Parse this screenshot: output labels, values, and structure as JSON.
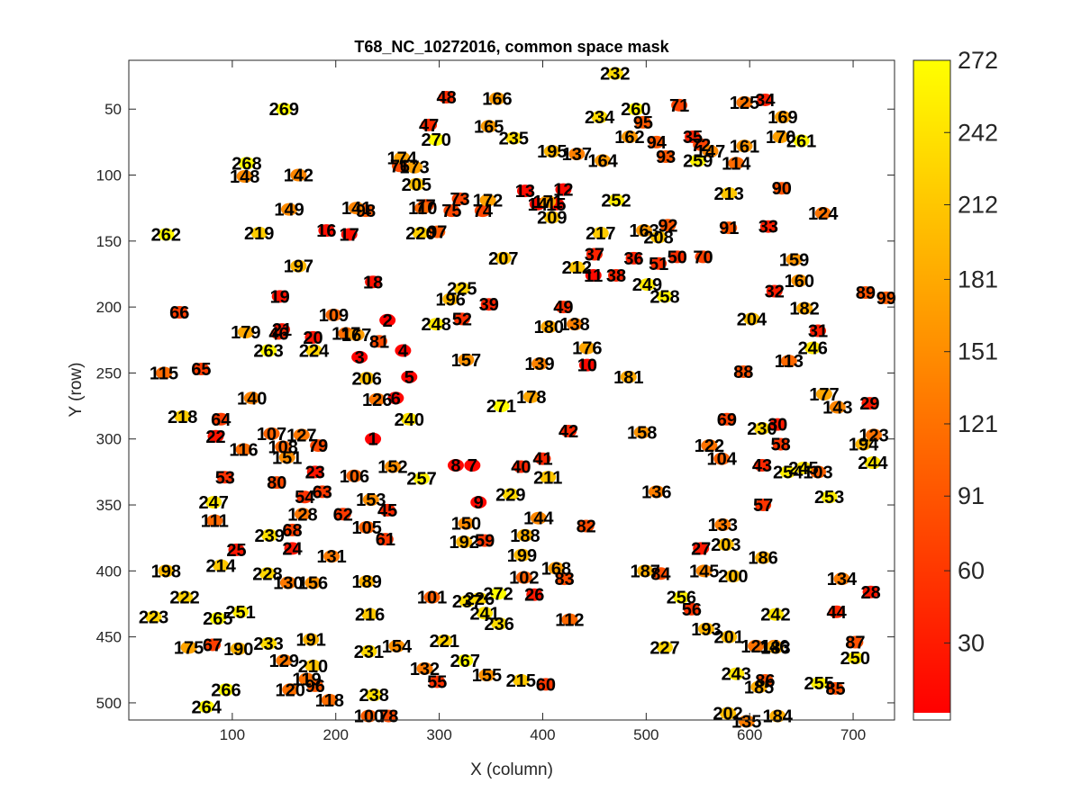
{
  "chart_data": {
    "type": "scatter",
    "title": "T68_NC_10272016, common space mask",
    "xlabel": "X (column)",
    "ylabel": "Y (row)",
    "xlim": [
      0,
      740
    ],
    "ylim": [
      13,
      513
    ],
    "y_reversed": true,
    "x_ticks": [
      100,
      200,
      300,
      400,
      500,
      600,
      700
    ],
    "y_ticks": [
      50,
      100,
      150,
      200,
      250,
      300,
      350,
      400,
      450,
      500
    ],
    "colorbar": {
      "colormap": "autumn",
      "range": [
        1,
        272
      ],
      "ticks": [
        30,
        60,
        91,
        121,
        151,
        181,
        212,
        242,
        272
      ]
    },
    "points": [
      {
        "id": 1,
        "x": 236,
        "y": 300
      },
      {
        "id": 2,
        "x": 250,
        "y": 210
      },
      {
        "id": 3,
        "x": 223,
        "y": 238
      },
      {
        "id": 4,
        "x": 265,
        "y": 233
      },
      {
        "id": 5,
        "x": 271,
        "y": 253
      },
      {
        "id": 6,
        "x": 258,
        "y": 269
      },
      {
        "id": 7,
        "x": 332,
        "y": 320
      },
      {
        "id": 8,
        "x": 316,
        "y": 320
      },
      {
        "id": 9,
        "x": 338,
        "y": 348
      },
      {
        "id": 10,
        "x": 443,
        "y": 244
      },
      {
        "id": 11,
        "x": 449,
        "y": 176
      },
      {
        "id": 12,
        "x": 420,
        "y": 111
      },
      {
        "id": 13,
        "x": 383,
        "y": 112
      },
      {
        "id": 14,
        "x": 395,
        "y": 122
      },
      {
        "id": 15,
        "x": 413,
        "y": 122
      },
      {
        "id": 16,
        "x": 191,
        "y": 142
      },
      {
        "id": 17,
        "x": 213,
        "y": 145
      },
      {
        "id": 18,
        "x": 236,
        "y": 181
      },
      {
        "id": 19,
        "x": 146,
        "y": 192
      },
      {
        "id": 20,
        "x": 178,
        "y": 223
      },
      {
        "id": 21,
        "x": 148,
        "y": 217
      },
      {
        "id": 22,
        "x": 84,
        "y": 298
      },
      {
        "id": 23,
        "x": 180,
        "y": 325
      },
      {
        "id": 24,
        "x": 158,
        "y": 383
      },
      {
        "id": 25,
        "x": 104,
        "y": 384
      },
      {
        "id": 26,
        "x": 392,
        "y": 418
      },
      {
        "id": 27,
        "x": 553,
        "y": 383
      },
      {
        "id": 28,
        "x": 717,
        "y": 416
      },
      {
        "id": 29,
        "x": 716,
        "y": 273
      },
      {
        "id": 30,
        "x": 627,
        "y": 289
      },
      {
        "id": 31,
        "x": 666,
        "y": 218
      },
      {
        "id": 32,
        "x": 624,
        "y": 188
      },
      {
        "id": 33,
        "x": 618,
        "y": 139
      },
      {
        "id": 34,
        "x": 615,
        "y": 43
      },
      {
        "id": 35,
        "x": 545,
        "y": 71
      },
      {
        "id": 36,
        "x": 488,
        "y": 163
      },
      {
        "id": 37,
        "x": 450,
        "y": 160
      },
      {
        "id": 38,
        "x": 471,
        "y": 176
      },
      {
        "id": 39,
        "x": 348,
        "y": 198
      },
      {
        "id": 40,
        "x": 379,
        "y": 321
      },
      {
        "id": 41,
        "x": 400,
        "y": 315
      },
      {
        "id": 42,
        "x": 425,
        "y": 294
      },
      {
        "id": 43,
        "x": 612,
        "y": 320
      },
      {
        "id": 44,
        "x": 684,
        "y": 431
      },
      {
        "id": 45,
        "x": 250,
        "y": 354
      },
      {
        "id": 46,
        "x": 145,
        "y": 220
      },
      {
        "id": 47,
        "x": 290,
        "y": 62
      },
      {
        "id": 48,
        "x": 307,
        "y": 41
      },
      {
        "id": 49,
        "x": 420,
        "y": 200
      },
      {
        "id": 50,
        "x": 530,
        "y": 162
      },
      {
        "id": 51,
        "x": 512,
        "y": 167
      },
      {
        "id": 52,
        "x": 322,
        "y": 209
      },
      {
        "id": 53,
        "x": 93,
        "y": 329
      },
      {
        "id": 54,
        "x": 170,
        "y": 344
      },
      {
        "id": 55,
        "x": 298,
        "y": 484
      },
      {
        "id": 56,
        "x": 544,
        "y": 429
      },
      {
        "id": 57,
        "x": 613,
        "y": 350
      },
      {
        "id": 58,
        "x": 630,
        "y": 304
      },
      {
        "id": 59,
        "x": 344,
        "y": 377
      },
      {
        "id": 60,
        "x": 403,
        "y": 486
      },
      {
        "id": 61,
        "x": 248,
        "y": 376
      },
      {
        "id": 62,
        "x": 207,
        "y": 357
      },
      {
        "id": 63,
        "x": 187,
        "y": 340
      },
      {
        "id": 64,
        "x": 89,
        "y": 285
      },
      {
        "id": 65,
        "x": 70,
        "y": 247
      },
      {
        "id": 66,
        "x": 49,
        "y": 204
      },
      {
        "id": 67,
        "x": 81,
        "y": 456
      },
      {
        "id": 68,
        "x": 158,
        "y": 369
      },
      {
        "id": 69,
        "x": 578,
        "y": 285
      },
      {
        "id": 70,
        "x": 555,
        "y": 162
      },
      {
        "id": 71,
        "x": 532,
        "y": 47
      },
      {
        "id": 72,
        "x": 553,
        "y": 77
      },
      {
        "id": 73,
        "x": 320,
        "y": 118
      },
      {
        "id": 74,
        "x": 342,
        "y": 127
      },
      {
        "id": 75,
        "x": 312,
        "y": 127
      },
      {
        "id": 76,
        "x": 262,
        "y": 93
      },
      {
        "id": 77,
        "x": 287,
        "y": 123
      },
      {
        "id": 78,
        "x": 251,
        "y": 510
      },
      {
        "id": 79,
        "x": 183,
        "y": 305
      },
      {
        "id": 80,
        "x": 143,
        "y": 333
      },
      {
        "id": 81,
        "x": 242,
        "y": 226
      },
      {
        "id": 82,
        "x": 442,
        "y": 366
      },
      {
        "id": 83,
        "x": 421,
        "y": 406
      },
      {
        "id": 84,
        "x": 514,
        "y": 402
      },
      {
        "id": 85,
        "x": 683,
        "y": 489
      },
      {
        "id": 86,
        "x": 615,
        "y": 483
      },
      {
        "id": 87,
        "x": 702,
        "y": 454
      },
      {
        "id": 88,
        "x": 594,
        "y": 249
      },
      {
        "id": 89,
        "x": 712,
        "y": 189
      },
      {
        "id": 90,
        "x": 631,
        "y": 110
      },
      {
        "id": 91,
        "x": 580,
        "y": 140
      },
      {
        "id": 92,
        "x": 521,
        "y": 138
      },
      {
        "id": 93,
        "x": 519,
        "y": 86
      },
      {
        "id": 94,
        "x": 510,
        "y": 75
      },
      {
        "id": 95,
        "x": 497,
        "y": 60
      },
      {
        "id": 96,
        "x": 180,
        "y": 487
      },
      {
        "id": 97,
        "x": 298,
        "y": 143
      },
      {
        "id": 98,
        "x": 229,
        "y": 127
      },
      {
        "id": 99,
        "x": 732,
        "y": 193
      },
      {
        "id": 100,
        "x": 232,
        "y": 510
      },
      {
        "id": 101,
        "x": 293,
        "y": 420
      },
      {
        "id": 102,
        "x": 382,
        "y": 405
      },
      {
        "id": 103,
        "x": 666,
        "y": 325
      },
      {
        "id": 104,
        "x": 573,
        "y": 315
      },
      {
        "id": 105,
        "x": 230,
        "y": 367
      },
      {
        "id": 106,
        "x": 218,
        "y": 328
      },
      {
        "id": 107,
        "x": 138,
        "y": 296
      },
      {
        "id": 108,
        "x": 149,
        "y": 306
      },
      {
        "id": 109,
        "x": 198,
        "y": 206
      },
      {
        "id": 110,
        "x": 284,
        "y": 125
      },
      {
        "id": 111,
        "x": 83,
        "y": 362
      },
      {
        "id": 112,
        "x": 426,
        "y": 437
      },
      {
        "id": 113,
        "x": 638,
        "y": 241
      },
      {
        "id": 114,
        "x": 587,
        "y": 91
      },
      {
        "id": 115,
        "x": 34,
        "y": 250
      },
      {
        "id": 116,
        "x": 111,
        "y": 308
      },
      {
        "id": 117,
        "x": 210,
        "y": 220
      },
      {
        "id": 118,
        "x": 194,
        "y": 498
      },
      {
        "id": 119,
        "x": 172,
        "y": 482
      },
      {
        "id": 120,
        "x": 156,
        "y": 490
      },
      {
        "id": 121,
        "x": 606,
        "y": 457
      },
      {
        "id": 122,
        "x": 561,
        "y": 305
      },
      {
        "id": 123,
        "x": 720,
        "y": 297
      },
      {
        "id": 124,
        "x": 671,
        "y": 129
      },
      {
        "id": 125,
        "x": 595,
        "y": 45
      },
      {
        "id": 126,
        "x": 240,
        "y": 270
      },
      {
        "id": 127,
        "x": 167,
        "y": 297
      },
      {
        "id": 128,
        "x": 168,
        "y": 357
      },
      {
        "id": 129,
        "x": 150,
        "y": 468
      },
      {
        "id": 130,
        "x": 154,
        "y": 409
      },
      {
        "id": 131,
        "x": 196,
        "y": 389
      },
      {
        "id": 132,
        "x": 286,
        "y": 474
      },
      {
        "id": 133,
        "x": 574,
        "y": 365
      },
      {
        "id": 134,
        "x": 689,
        "y": 406
      },
      {
        "id": 135,
        "x": 597,
        "y": 514
      },
      {
        "id": 136,
        "x": 510,
        "y": 340
      },
      {
        "id": 137,
        "x": 433,
        "y": 84
      },
      {
        "id": 138,
        "x": 431,
        "y": 213
      },
      {
        "id": 139,
        "x": 397,
        "y": 243
      },
      {
        "id": 140,
        "x": 119,
        "y": 269
      },
      {
        "id": 141,
        "x": 220,
        "y": 125
      },
      {
        "id": 142,
        "x": 164,
        "y": 100
      },
      {
        "id": 143,
        "x": 685,
        "y": 276
      },
      {
        "id": 144,
        "x": 396,
        "y": 360
      },
      {
        "id": 145,
        "x": 556,
        "y": 400
      },
      {
        "id": 146,
        "x": 624,
        "y": 457
      },
      {
        "id": 147,
        "x": 562,
        "y": 82
      },
      {
        "id": 148,
        "x": 112,
        "y": 101
      },
      {
        "id": 149,
        "x": 155,
        "y": 126
      },
      {
        "id": 150,
        "x": 326,
        "y": 364
      },
      {
        "id": 151,
        "x": 153,
        "y": 314
      },
      {
        "id": 152,
        "x": 255,
        "y": 321
      },
      {
        "id": 153,
        "x": 234,
        "y": 346
      },
      {
        "id": 154,
        "x": 259,
        "y": 457
      },
      {
        "id": 155,
        "x": 346,
        "y": 479
      },
      {
        "id": 156,
        "x": 178,
        "y": 409
      },
      {
        "id": 157,
        "x": 326,
        "y": 240
      },
      {
        "id": 158,
        "x": 496,
        "y": 295
      },
      {
        "id": 159,
        "x": 643,
        "y": 164
      },
      {
        "id": 160,
        "x": 648,
        "y": 180
      },
      {
        "id": 161,
        "x": 595,
        "y": 78
      },
      {
        "id": 162,
        "x": 484,
        "y": 71
      },
      {
        "id": 163,
        "x": 498,
        "y": 142
      },
      {
        "id": 164,
        "x": 458,
        "y": 89
      },
      {
        "id": 165,
        "x": 348,
        "y": 63
      },
      {
        "id": 166,
        "x": 356,
        "y": 42
      },
      {
        "id": 167,
        "x": 220,
        "y": 221
      },
      {
        "id": 168,
        "x": 413,
        "y": 398
      },
      {
        "id": 169,
        "x": 632,
        "y": 56
      },
      {
        "id": 170,
        "x": 630,
        "y": 71
      },
      {
        "id": 171,
        "x": 405,
        "y": 120
      },
      {
        "id": 172,
        "x": 347,
        "y": 119
      },
      {
        "id": 173,
        "x": 276,
        "y": 94
      },
      {
        "id": 174,
        "x": 264,
        "y": 87
      },
      {
        "id": 175,
        "x": 58,
        "y": 458
      },
      {
        "id": 176,
        "x": 443,
        "y": 231
      },
      {
        "id": 177,
        "x": 672,
        "y": 266
      },
      {
        "id": 178,
        "x": 389,
        "y": 268
      },
      {
        "id": 179,
        "x": 113,
        "y": 219
      },
      {
        "id": 180,
        "x": 406,
        "y": 215
      },
      {
        "id": 181,
        "x": 483,
        "y": 253
      },
      {
        "id": 182,
        "x": 653,
        "y": 201
      },
      {
        "id": 183,
        "x": 625,
        "y": 458
      },
      {
        "id": 184,
        "x": 627,
        "y": 510
      },
      {
        "id": 185,
        "x": 609,
        "y": 488
      },
      {
        "id": 186,
        "x": 613,
        "y": 390
      },
      {
        "id": 187,
        "x": 499,
        "y": 400
      },
      {
        "id": 188,
        "x": 383,
        "y": 373
      },
      {
        "id": 189,
        "x": 230,
        "y": 408
      },
      {
        "id": 190,
        "x": 106,
        "y": 459
      },
      {
        "id": 191,
        "x": 176,
        "y": 452
      },
      {
        "id": 192,
        "x": 324,
        "y": 378
      },
      {
        "id": 193,
        "x": 558,
        "y": 444
      },
      {
        "id": 194,
        "x": 710,
        "y": 304
      },
      {
        "id": 195,
        "x": 409,
        "y": 82
      },
      {
        "id": 196,
        "x": 311,
        "y": 194
      },
      {
        "id": 197,
        "x": 164,
        "y": 169
      },
      {
        "id": 198,
        "x": 36,
        "y": 400
      },
      {
        "id": 199,
        "x": 380,
        "y": 388
      },
      {
        "id": 200,
        "x": 584,
        "y": 404
      },
      {
        "id": 201,
        "x": 580,
        "y": 450
      },
      {
        "id": 202,
        "x": 579,
        "y": 508
      },
      {
        "id": 203,
        "x": 577,
        "y": 380
      },
      {
        "id": 204,
        "x": 602,
        "y": 209
      },
      {
        "id": 205,
        "x": 278,
        "y": 107
      },
      {
        "id": 206,
        "x": 230,
        "y": 254
      },
      {
        "id": 207,
        "x": 362,
        "y": 163
      },
      {
        "id": 208,
        "x": 512,
        "y": 147
      },
      {
        "id": 209,
        "x": 409,
        "y": 132
      },
      {
        "id": 210,
        "x": 178,
        "y": 472
      },
      {
        "id": 211,
        "x": 405,
        "y": 329
      },
      {
        "id": 212,
        "x": 433,
        "y": 170
      },
      {
        "id": 213,
        "x": 580,
        "y": 114
      },
      {
        "id": 214,
        "x": 89,
        "y": 396
      },
      {
        "id": 215,
        "x": 379,
        "y": 483
      },
      {
        "id": 216,
        "x": 233,
        "y": 433
      },
      {
        "id": 217,
        "x": 456,
        "y": 144
      },
      {
        "id": 218,
        "x": 52,
        "y": 283
      },
      {
        "id": 219,
        "x": 126,
        "y": 144
      },
      {
        "id": 220,
        "x": 282,
        "y": 144
      },
      {
        "id": 221,
        "x": 305,
        "y": 453
      },
      {
        "id": 222,
        "x": 54,
        "y": 420
      },
      {
        "id": 223,
        "x": 24,
        "y": 435
      },
      {
        "id": 224,
        "x": 179,
        "y": 233
      },
      {
        "id": 225,
        "x": 322,
        "y": 186
      },
      {
        "id": 226,
        "x": 339,
        "y": 421
      },
      {
        "id": 227,
        "x": 518,
        "y": 458
      },
      {
        "id": 228,
        "x": 134,
        "y": 402
      },
      {
        "id": 229,
        "x": 369,
        "y": 342
      },
      {
        "id": 230,
        "x": 612,
        "y": 292
      },
      {
        "id": 231,
        "x": 232,
        "y": 461
      },
      {
        "id": 232,
        "x": 470,
        "y": 23
      },
      {
        "id": 233,
        "x": 135,
        "y": 455
      },
      {
        "id": 234,
        "x": 455,
        "y": 56
      },
      {
        "id": 235,
        "x": 372,
        "y": 72
      },
      {
        "id": 236,
        "x": 358,
        "y": 440
      },
      {
        "id": 237,
        "x": 327,
        "y": 423
      },
      {
        "id": 238,
        "x": 237,
        "y": 494
      },
      {
        "id": 239,
        "x": 136,
        "y": 373
      },
      {
        "id": 240,
        "x": 271,
        "y": 285
      },
      {
        "id": 241,
        "x": 344,
        "y": 432
      },
      {
        "id": 242,
        "x": 625,
        "y": 433
      },
      {
        "id": 243,
        "x": 587,
        "y": 478
      },
      {
        "id": 244,
        "x": 719,
        "y": 318
      },
      {
        "id": 245,
        "x": 652,
        "y": 322
      },
      {
        "id": 246,
        "x": 661,
        "y": 231
      },
      {
        "id": 247,
        "x": 82,
        "y": 348
      },
      {
        "id": 248,
        "x": 297,
        "y": 213
      },
      {
        "id": 249,
        "x": 501,
        "y": 183
      },
      {
        "id": 250,
        "x": 702,
        "y": 466
      },
      {
        "id": 251,
        "x": 108,
        "y": 431
      },
      {
        "id": 252,
        "x": 471,
        "y": 119
      },
      {
        "id": 253,
        "x": 677,
        "y": 344
      },
      {
        "id": 254,
        "x": 637,
        "y": 325
      },
      {
        "id": 255,
        "x": 667,
        "y": 485
      },
      {
        "id": 256,
        "x": 534,
        "y": 420
      },
      {
        "id": 257,
        "x": 283,
        "y": 330
      },
      {
        "id": 258,
        "x": 518,
        "y": 192
      },
      {
        "id": 259,
        "x": 550,
        "y": 89
      },
      {
        "id": 260,
        "x": 490,
        "y": 50
      },
      {
        "id": 261,
        "x": 650,
        "y": 74
      },
      {
        "id": 262,
        "x": 36,
        "y": 145
      },
      {
        "id": 263,
        "x": 135,
        "y": 233
      },
      {
        "id": 264,
        "x": 75,
        "y": 503
      },
      {
        "id": 265,
        "x": 86,
        "y": 436
      },
      {
        "id": 266,
        "x": 94,
        "y": 490
      },
      {
        "id": 267,
        "x": 325,
        "y": 468
      },
      {
        "id": 268,
        "x": 114,
        "y": 91
      },
      {
        "id": 269,
        "x": 150,
        "y": 50
      },
      {
        "id": 270,
        "x": 297,
        "y": 73
      },
      {
        "id": 271,
        "x": 360,
        "y": 275
      },
      {
        "id": 272,
        "x": 357,
        "y": 417
      }
    ]
  }
}
